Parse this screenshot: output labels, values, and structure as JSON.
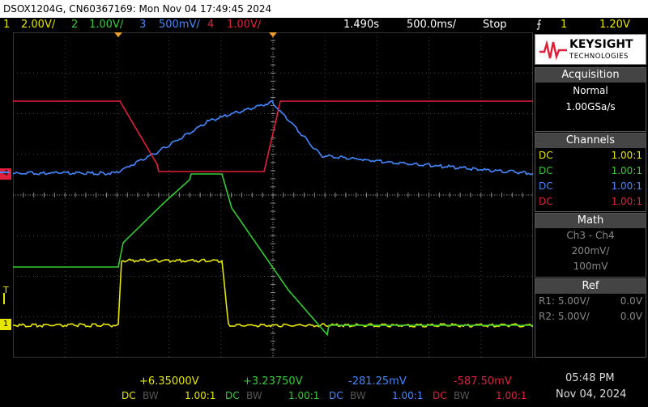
{
  "title": "DSOX1204G, CN60367169: Mon Nov 04 17:49:45 2024",
  "status": {
    "ch1_num": "1",
    "ch1_scale": "2.00V/",
    "ch2_num": "2",
    "ch2_scale": "1.00V/",
    "ch3_num": "3",
    "ch3_scale": "500mV/",
    "ch4_num": "4",
    "ch4_scale": "1.00V/",
    "delay": "1.490s",
    "timebase": "500.0ms/",
    "run_state": "Stop",
    "trigger_icon": "trigger-edge-icon",
    "trigger_ch": "1",
    "trigger_level": "1.20V"
  },
  "brand": {
    "name": "KEYSIGHT",
    "sub": "TECHNOLOGIES"
  },
  "acquisition": {
    "header": "Acquisition",
    "mode": "Normal",
    "rate": "1.00GSa/s"
  },
  "channels": {
    "header": "Channels",
    "rows": [
      {
        "coupling": "DC",
        "probe": "1.00:1",
        "color": "#e6e600"
      },
      {
        "coupling": "DC",
        "probe": "1.00:1",
        "color": "#33cc33"
      },
      {
        "coupling": "DC",
        "probe": "1.00:1",
        "color": "#4488ff"
      },
      {
        "coupling": "DC",
        "probe": "1.00:1",
        "color": "#e0203a"
      }
    ]
  },
  "math": {
    "header": "Math",
    "func": "Ch3 - Ch4",
    "scale": "200mV/",
    "offset": "100mV"
  },
  "ref": {
    "header": "Ref",
    "r1_label": "R1:",
    "r1_scale": "5.00V/",
    "r1_off": "0.0V",
    "r2_label": "R2:",
    "r2_scale": "5.00V/",
    "r2_off": "0.0V"
  },
  "measurements": [
    {
      "value": "+6.35000V",
      "coupling": "DC",
      "bw": "BW",
      "probe": "1.00:1",
      "color": "#e6e600"
    },
    {
      "value": "+3.23750V",
      "coupling": "DC",
      "bw": "BW",
      "probe": "1.00:1",
      "color": "#33cc33"
    },
    {
      "value": "-281.25mV",
      "coupling": "DC",
      "bw": "BW",
      "probe": "1.00:1",
      "color": "#4488ff"
    },
    {
      "value": "-587.50mV",
      "coupling": "DC",
      "bw": "BW",
      "probe": "1.00:1",
      "color": "#e0203a"
    }
  ],
  "clock": {
    "time": "05:48 PM",
    "date": "Nov 04, 2024"
  },
  "markers": {
    "trigger_level": "T",
    "ch1_ground": "1",
    "ch3_ground": "3",
    "ch4_ground": "4"
  },
  "colors": {
    "ch1": "#e6e600",
    "ch2": "#33cc33",
    "ch3": "#4488ff",
    "ch4": "#e0203a",
    "accent": "#f0a030"
  }
}
